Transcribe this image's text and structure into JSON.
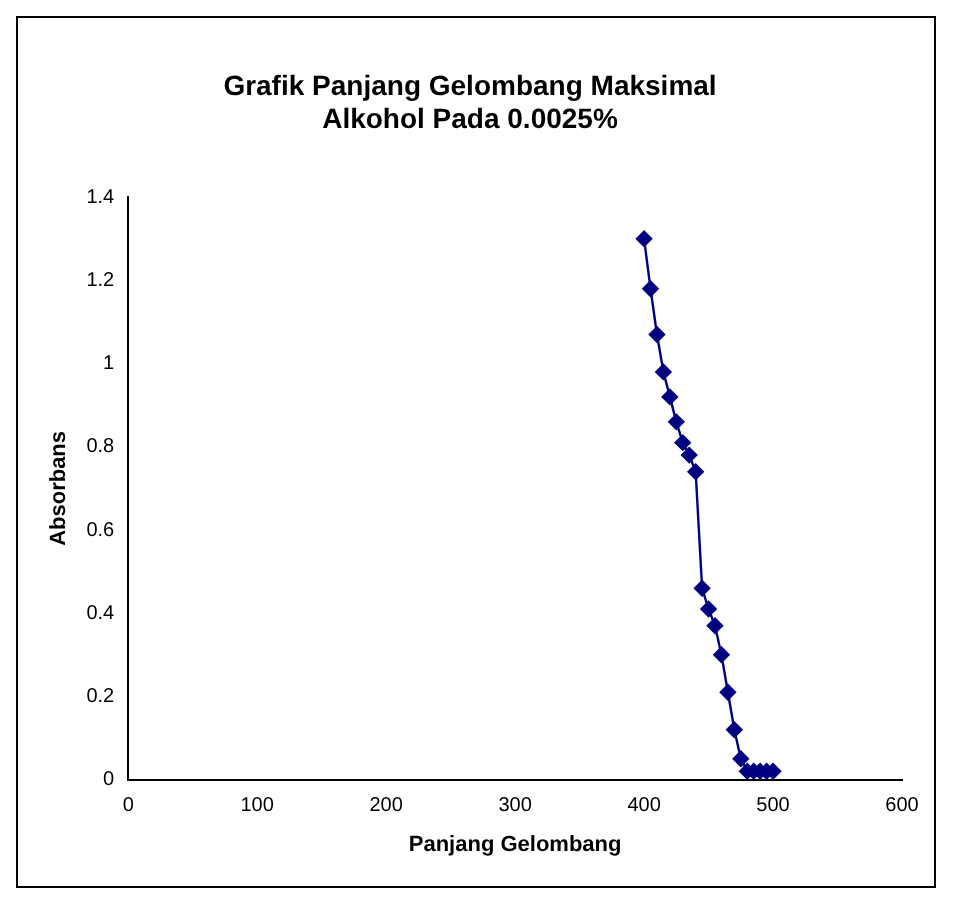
{
  "chart_data": {
    "type": "line",
    "title": [
      "Grafik Panjang Gelombang Maksimal",
      "Alkohol Pada 0.0025%"
    ],
    "xlabel": "Panjang Gelombang",
    "ylabel": "Absorbans",
    "x": [
      400,
      405,
      410,
      415,
      420,
      425,
      430,
      435,
      440,
      445,
      450,
      455,
      460,
      465,
      470,
      475,
      480,
      485,
      490,
      495,
      500
    ],
    "series": [
      {
        "color": "#000080",
        "values": [
          1.3,
          1.18,
          1.07,
          0.98,
          0.92,
          0.86,
          0.81,
          0.78,
          0.74,
          0.46,
          0.41,
          0.37,
          0.3,
          0.21,
          0.12,
          0.05,
          0.02,
          0.02,
          0.02,
          0.02,
          0.02
        ]
      }
    ],
    "xlim": [
      0,
      600
    ],
    "xticks": [
      0,
      100,
      200,
      300,
      400,
      500,
      600
    ],
    "ylim": [
      0,
      1.4
    ],
    "yticks": [
      0,
      0.2,
      0.4,
      0.6,
      0.8,
      1,
      1.2,
      1.4
    ],
    "grid": false,
    "legend": false,
    "marker": "diamond",
    "line_style": "solid"
  }
}
